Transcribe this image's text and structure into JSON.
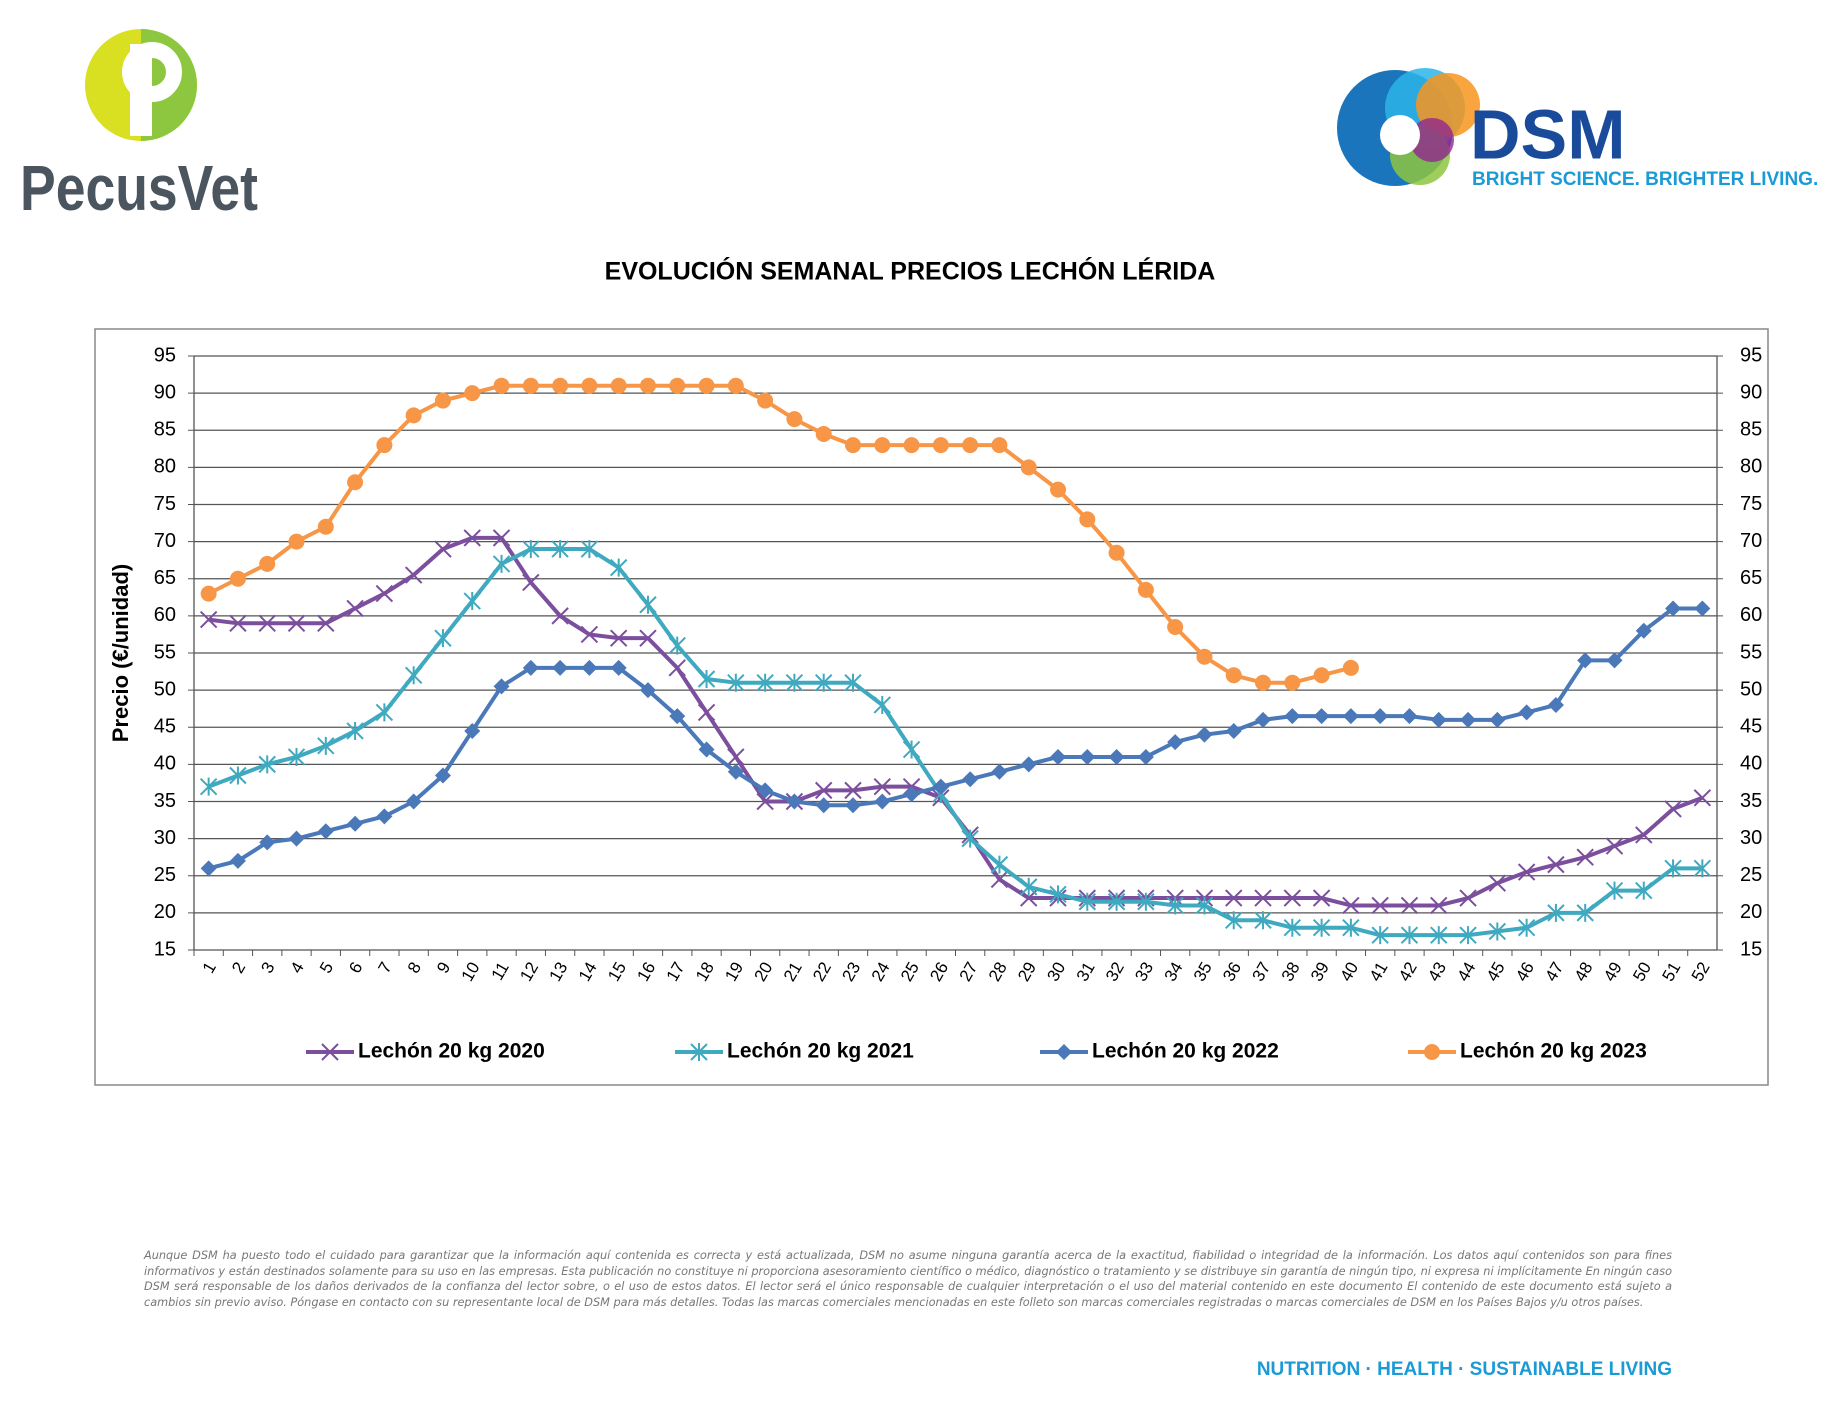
{
  "header": {
    "left_logo": "PecusVet",
    "right_logo": "DSM",
    "right_tagline": "BRIGHT SCIENCE. BRIGHTER LIVING."
  },
  "chart_data": {
    "type": "line",
    "title": "EVOLUCIÓN SEMANAL PRECIOS LECHÓN LÉRIDA",
    "y_label": "Precio (€/unidad)",
    "categories": [
      "1",
      "2",
      "3",
      "4",
      "5",
      "6",
      "7",
      "8",
      "9",
      "10",
      "11",
      "12",
      "13",
      "14",
      "15",
      "16",
      "17",
      "18",
      "19",
      "20",
      "21",
      "22",
      "23",
      "24",
      "25",
      "26",
      "27",
      "28",
      "29",
      "30",
      "31",
      "32",
      "33",
      "34",
      "35",
      "36",
      "37",
      "38",
      "39",
      "40",
      "41",
      "42",
      "43",
      "44",
      "45",
      "46",
      "47",
      "48",
      "49",
      "50",
      "51",
      "52"
    ],
    "series": [
      {
        "name": "Lechón 20 kg 2020",
        "color": "#7b4f9d",
        "marker": "x",
        "values": [
          59.5,
          59,
          59,
          59,
          59,
          61,
          63,
          65.5,
          69,
          70.5,
          70.5,
          64.5,
          60,
          57.5,
          57,
          57,
          53,
          47,
          41,
          35,
          35,
          36.5,
          36.5,
          37,
          37,
          35.5,
          30.5,
          24.5,
          22,
          22,
          22,
          22,
          22,
          22,
          22,
          22,
          22,
          22,
          22,
          21,
          21,
          21,
          21,
          22,
          24,
          25.5,
          26.5,
          27.5,
          29,
          30.5,
          34,
          35.5
        ]
      },
      {
        "name": "Lechón 20 kg 2021",
        "color": "#3fa9c0",
        "marker": "asterisk",
        "values": [
          37,
          38.5,
          40,
          41,
          42.5,
          44.5,
          47,
          52,
          57,
          62,
          67,
          69,
          69,
          69,
          66.5,
          61.5,
          56,
          51.5,
          51,
          51,
          51,
          51,
          51,
          48,
          42,
          36,
          30,
          26.5,
          23.5,
          22.5,
          21.5,
          21.5,
          21.5,
          21,
          21,
          19,
          19,
          18,
          18,
          18,
          17,
          17,
          17,
          17,
          17.5,
          18,
          20,
          20,
          23,
          23,
          26,
          26
        ]
      },
      {
        "name": "Lechón 20 kg 2022",
        "color": "#4a78b8",
        "marker": "diamond",
        "values": [
          26,
          27,
          29.5,
          30,
          31,
          32,
          33,
          35,
          38.5,
          44.5,
          50.5,
          53,
          53,
          53,
          53,
          50,
          46.5,
          42,
          39,
          36.5,
          35,
          34.5,
          34.5,
          35,
          36,
          37,
          38,
          39,
          40,
          41,
          41,
          41,
          41,
          43,
          44,
          44.5,
          46,
          46.5,
          46.5,
          46.5,
          46.5,
          46.5,
          46,
          46,
          46,
          47,
          48,
          54,
          54,
          58,
          61,
          61
        ]
      },
      {
        "name": "Lechón 20 kg 2023",
        "color": "#f79646",
        "marker": "circle",
        "values": [
          63,
          65,
          67,
          70,
          72,
          78,
          83,
          87,
          89,
          90,
          91,
          91,
          91,
          91,
          91,
          91,
          91,
          91,
          91,
          89,
          86.5,
          84.5,
          83,
          83,
          83,
          83,
          83,
          83,
          80,
          77,
          73,
          68.5,
          63.5,
          58.5,
          54.5,
          52,
          51,
          51,
          52,
          53,
          null,
          null,
          null,
          null,
          null,
          null,
          null,
          null,
          null,
          null,
          null,
          null
        ]
      }
    ],
    "ylim": [
      15,
      95
    ],
    "yticks": [
      15,
      20,
      25,
      30,
      35,
      40,
      45,
      50,
      55,
      60,
      65,
      70,
      75,
      80,
      85,
      90,
      95
    ],
    "y2lim": [
      15,
      95
    ],
    "y2ticks": [
      15,
      20,
      25,
      30,
      35,
      40,
      45,
      50,
      55,
      60,
      65,
      70,
      75,
      80,
      85,
      90,
      95
    ],
    "grid": true,
    "legend": "bottom"
  },
  "footer": {
    "disclaimer": "Aunque DSM ha puesto todo el cuidado para garantizar que la información aquí contenida es correcta y está actualizada, DSM no asume ninguna garantía acerca de la exactitud, fiabilidad o integridad de la información. Los datos aquí contenidos son para fines informativos y están destinados solamente para su uso en las empresas. Esta publicación no constituye ni proporciona asesoramiento científico o médico, diagnóstico o tratamiento y se distribuye sin garantía de ningún tipo, ni expresa ni implícitamente En ningún caso DSM será responsable de los daños derivados de la confianza del lector sobre, o el uso de estos datos. El lector será el único responsable de cualquier interpretación o el uso del material contenido en este documento El contenido de este documento está sujeto a cambios sin previo aviso. Póngase en contacto con su representante local de DSM para más detalles. Todas las marcas comerciales mencionadas en este folleto son marcas comerciales registradas o marcas comerciales de DSM en los Países Bajos y/u otros países.",
    "slogan": "NUTRITION · HEALTH · SUSTAINABLE LIVING"
  }
}
